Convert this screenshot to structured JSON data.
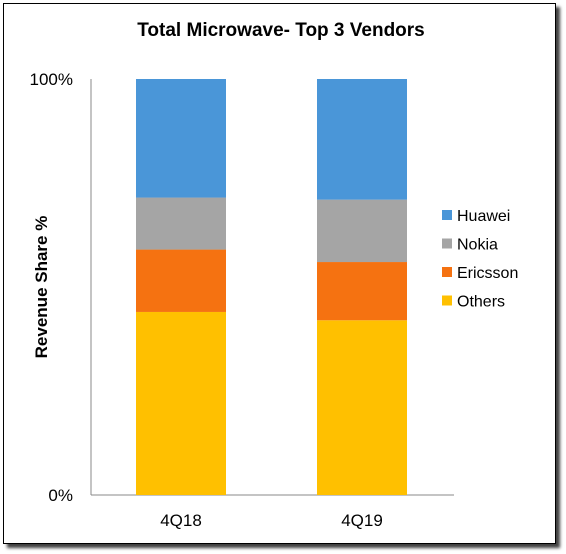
{
  "chart_data": {
    "type": "bar",
    "stacked": true,
    "title": "Total Microwave- Top 3 Vendors",
    "xlabel": "",
    "ylabel": "Revenue Share %",
    "ylim": [
      0,
      100
    ],
    "y_tick_labels": [
      "0%",
      "100%"
    ],
    "categories": [
      "4Q18",
      "4Q19"
    ],
    "series": [
      {
        "name": "Others",
        "color": "#FFC000",
        "values": [
          44,
          42
        ]
      },
      {
        "name": "Ericsson",
        "color": "#F57211",
        "values": [
          15,
          14
        ]
      },
      {
        "name": "Nokia",
        "color": "#A5A5A5",
        "values": [
          12.5,
          15
        ]
      },
      {
        "name": "Huawei",
        "color": "#4A96D8",
        "values": [
          28.5,
          29
        ]
      }
    ],
    "legend": {
      "position": "right",
      "order": [
        "Huawei",
        "Nokia",
        "Ericsson",
        "Others"
      ]
    },
    "grid": false
  }
}
